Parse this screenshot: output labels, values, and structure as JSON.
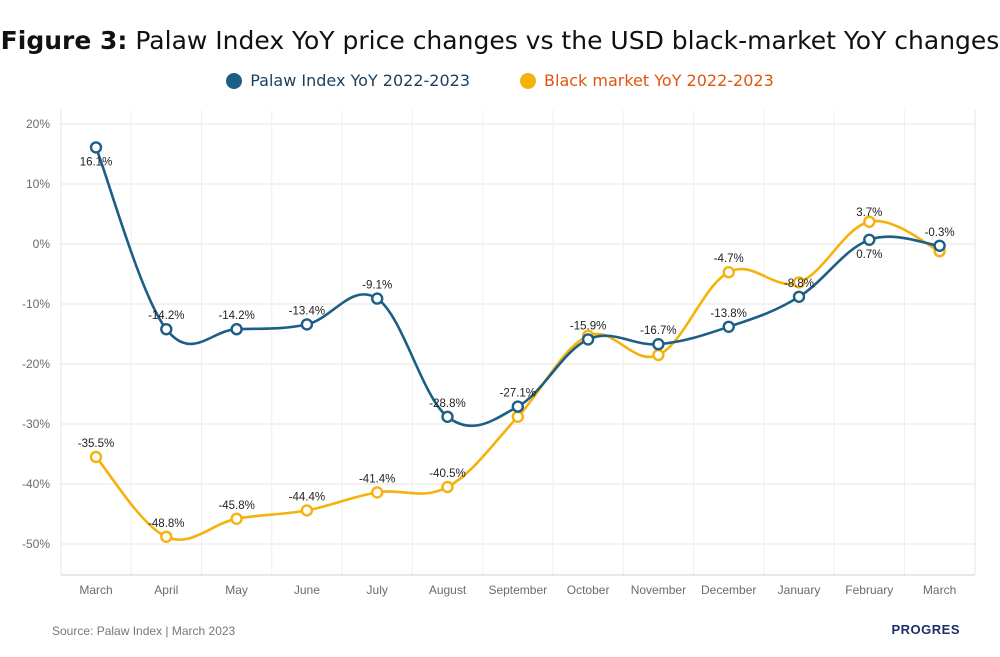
{
  "title": {
    "bold": "Figure 3:",
    "rest": "Palaw Index YoY price changes vs the USD black-market YoY changes"
  },
  "legend": [
    {
      "label": "Palaw Index YoY 2022-2023",
      "color": "#1b5e86",
      "text_color": "#1b3f5e"
    },
    {
      "label": "Black market YoY 2022-2023",
      "color": "#f5b20a",
      "text_color": "#e0550f"
    }
  ],
  "source": "Source: Palaw Index | March 2023",
  "brand": "PROGRES",
  "chart_data": {
    "type": "line",
    "categories": [
      "March",
      "April",
      "May",
      "June",
      "July",
      "August",
      "September",
      "October",
      "November",
      "December",
      "January",
      "February",
      "March"
    ],
    "y_ticks": [
      "20%",
      "10%",
      "0%",
      "-10%",
      "-20%",
      "-30%",
      "-40%",
      "-50%"
    ],
    "ylim": [
      -55,
      20
    ],
    "grid": true,
    "legend_position": "top-center",
    "series": [
      {
        "name": "Palaw Index YoY 2022-2023",
        "color": "#1b5e86",
        "values": [
          16.1,
          -14.2,
          -14.2,
          -13.4,
          -9.1,
          -28.8,
          -27.1,
          -15.9,
          -16.7,
          -13.8,
          -8.8,
          0.7,
          -0.3
        ],
        "labels": [
          "16.1%",
          "-14.2%",
          "-14.2%",
          "-13.4%",
          "-9.1%",
          "-28.8%",
          "-27.1%",
          "-15.9%",
          "-16.7%",
          "-13.8%",
          "-8.8%",
          "0.7%",
          "-0.3%"
        ]
      },
      {
        "name": "Black market YoY 2022-2023",
        "color": "#f5b20a",
        "values": [
          -35.5,
          -48.8,
          -45.8,
          -44.4,
          -41.4,
          -40.5,
          -28.8,
          -15.3,
          -18.5,
          -4.7,
          -6.4,
          3.7,
          -1.2
        ],
        "labels": [
          "-35.5%",
          "-48.8%",
          "-45.8%",
          "-44.4%",
          "-41.4%",
          "-40.5%",
          "",
          "",
          "",
          "-4.7%",
          "",
          "3.7%",
          ""
        ]
      }
    ]
  }
}
